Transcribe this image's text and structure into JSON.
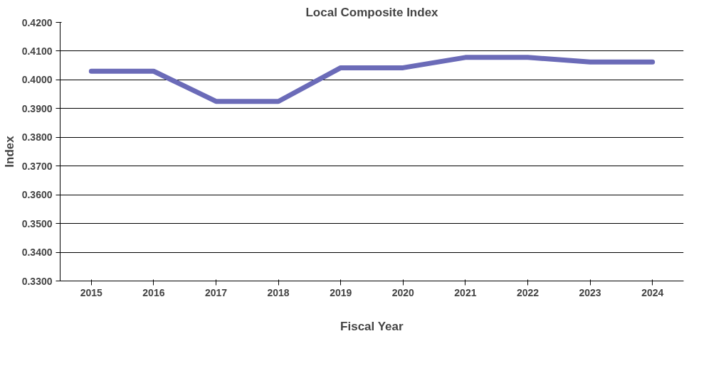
{
  "chart_data": {
    "type": "line",
    "title": "Local Composite Index",
    "xlabel": "Fiscal Year",
    "ylabel": "Index",
    "categories": [
      "2015",
      "2016",
      "2017",
      "2018",
      "2019",
      "2020",
      "2021",
      "2022",
      "2023",
      "2024"
    ],
    "series": [
      {
        "color": "#6b6bb8",
        "values": [
          0.403,
          0.403,
          0.3925,
          0.3925,
          0.4042,
          0.4042,
          0.4078,
          0.4078,
          0.4062,
          0.4062
        ]
      }
    ],
    "ylim": [
      0.33,
      0.42
    ],
    "yticks": [
      {
        "value": 0.33,
        "label": "0.3300"
      },
      {
        "value": 0.34,
        "label": "0.3400"
      },
      {
        "value": 0.35,
        "label": "0.3500"
      },
      {
        "value": 0.36,
        "label": "0.3600"
      },
      {
        "value": 0.37,
        "label": "0.3700"
      },
      {
        "value": 0.38,
        "label": "0.3800"
      },
      {
        "value": 0.39,
        "label": "0.3900"
      },
      {
        "value": 0.4,
        "label": "0.4000"
      },
      {
        "value": 0.41,
        "label": "0.4100"
      },
      {
        "value": 0.42,
        "label": "0.4200"
      }
    ],
    "grid": "y",
    "marker": "none",
    "line_style": "solid"
  }
}
